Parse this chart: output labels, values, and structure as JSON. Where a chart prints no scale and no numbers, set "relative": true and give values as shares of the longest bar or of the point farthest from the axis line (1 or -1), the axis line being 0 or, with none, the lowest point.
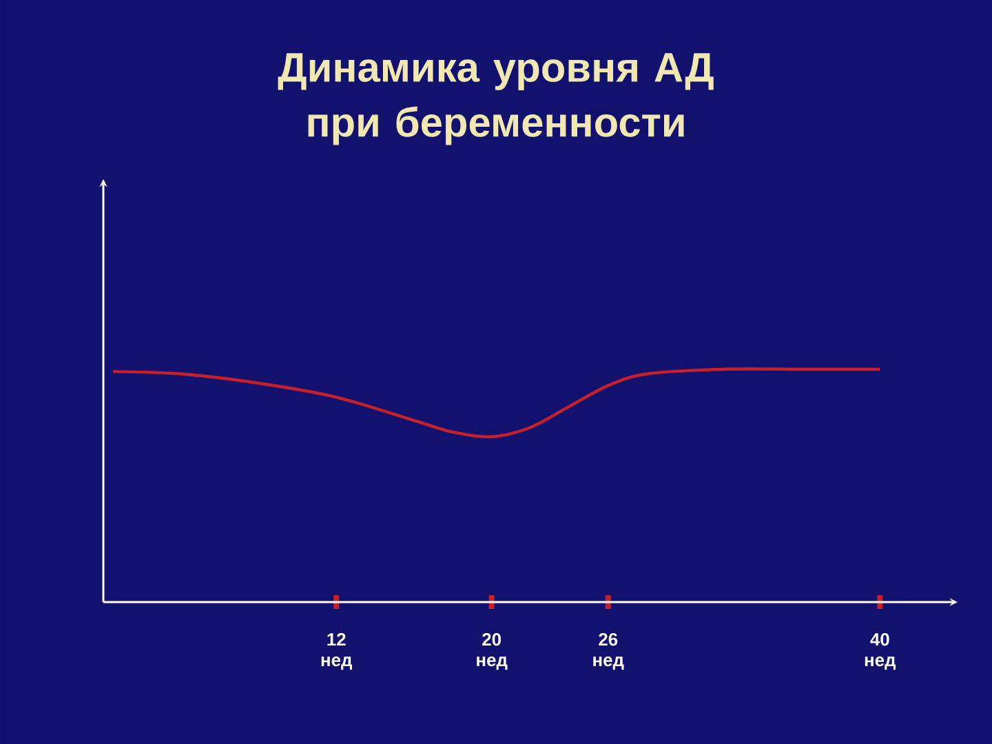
{
  "chart_data": {
    "type": "line",
    "title": "Динамика уровня АД при беременности",
    "relative": true,
    "x": [
      0.5,
      4,
      8,
      12,
      16,
      18,
      20,
      22,
      24,
      26,
      28,
      32,
      36,
      40
    ],
    "series": [
      {
        "color": "#c8202a",
        "values": [
          0.99,
          0.98,
          0.94,
          0.88,
          0.78,
          0.73,
          0.71,
          0.75,
          0.84,
          0.93,
          0.98,
          1.0,
          1.0,
          1.0
        ]
      }
    ],
    "xlim": [
      0,
      44
    ],
    "xticks": [
      {
        "value": 12,
        "label": "12 нед"
      },
      {
        "value": 20,
        "label": "20 нед"
      },
      {
        "value": 26,
        "label": "26 нед"
      },
      {
        "value": 40,
        "label": "40 нед"
      }
    ]
  }
}
